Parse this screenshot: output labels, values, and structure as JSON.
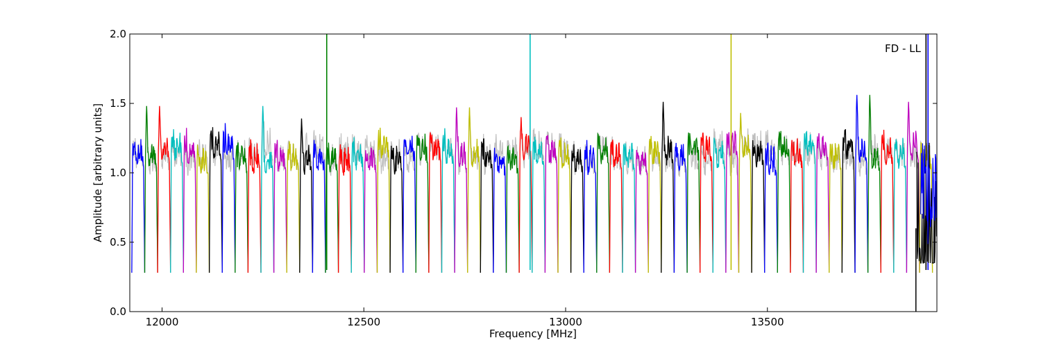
{
  "chart_data": {
    "type": "line",
    "title": "",
    "xlabel": "Frequency [MHz]",
    "ylabel": "Amplitude [arbitrary units]",
    "annotation": "FD - LL",
    "xlim": [
      11920,
      13920
    ],
    "ylim": [
      0.0,
      2.0
    ],
    "x_ticks": [
      12000,
      12500,
      13000,
      13500
    ],
    "x_tick_labels": [
      "12000",
      "12500",
      "13000",
      "13500"
    ],
    "y_ticks": [
      0.0,
      0.5,
      1.0,
      1.5,
      2.0
    ],
    "y_tick_labels": [
      "0.0",
      "0.5",
      "1.0",
      "1.5",
      "2.0"
    ],
    "grid": false,
    "legend": "none",
    "color_cycle": [
      "#0000ff",
      "#008000",
      "#ff0000",
      "#00bfbf",
      "#bf00bf",
      "#bfbf00",
      "#000000"
    ],
    "background_series_color": "#bfbfbf",
    "channel_width_mhz": 32,
    "channel_start_mhz": 11925,
    "channel_count": 62,
    "dip_minimum": 0.28,
    "typical_plateau": 1.15,
    "peak_annotations": [
      {
        "x": 11985,
        "y": 1.49
      },
      {
        "x": 12255,
        "y": 1.49
      },
      {
        "x": 12362,
        "y": 1.4
      },
      {
        "x": 12758,
        "y": 1.48
      },
      {
        "x": 12898,
        "y": 1.41
      },
      {
        "x": 13255,
        "y": 1.52
      },
      {
        "x": 13440,
        "y": 1.44
      },
      {
        "x": 13750,
        "y": 1.57
      },
      {
        "x": 13855,
        "y": 1.52
      }
    ],
    "spikes": [
      {
        "x": 12408,
        "y": 2.0,
        "color": "#008000"
      },
      {
        "x": 12912,
        "y": 2.0,
        "color": "#00bfbf"
      },
      {
        "x": 13410,
        "y": 2.0,
        "color": "#bfbf00"
      },
      {
        "x": 13893,
        "y": 2.0,
        "color": "#000000"
      },
      {
        "x": 13898,
        "y": 2.0,
        "color": "#0000ff"
      }
    ],
    "noisy_region": {
      "x_start": 13870,
      "x_end": 13920,
      "y_min": 0.0,
      "y_max": 1.3
    }
  }
}
